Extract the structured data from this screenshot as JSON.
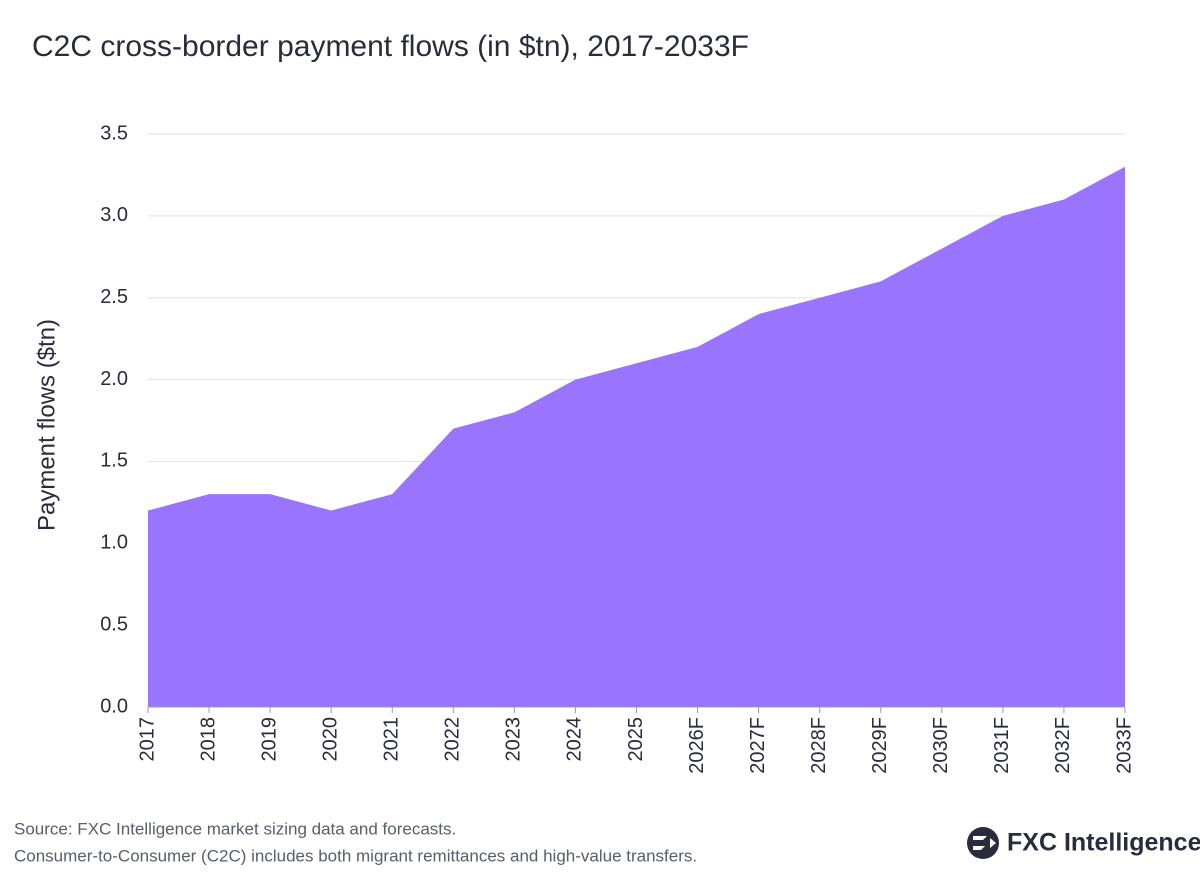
{
  "chart_data": {
    "type": "area",
    "title": "C2C cross-border payment flows (in $tn), 2017-2033F",
    "y_label": "Payment flows ($tn)",
    "categories": [
      "2017",
      "2018",
      "2019",
      "2020",
      "2021",
      "2022",
      "2023",
      "2024",
      "2025",
      "2026F",
      "2027F",
      "2028F",
      "2029F",
      "2030F",
      "2031F",
      "2032F",
      "2033F"
    ],
    "values": [
      1.2,
      1.3,
      1.3,
      1.2,
      1.3,
      1.7,
      1.8,
      2.0,
      2.1,
      2.2,
      2.4,
      2.5,
      2.6,
      2.8,
      3.0,
      3.1,
      3.3
    ],
    "color": "#9874ff",
    "ylim": [
      0,
      3.5
    ],
    "yticks": [
      {
        "value": 0,
        "label": "0.0"
      },
      0.5,
      {
        "value": 1,
        "label": "1.0"
      },
      1.5,
      {
        "value": 2,
        "label": "2.0"
      },
      2.5,
      {
        "value": 3,
        "label": "3.0"
      },
      3.5
    ],
    "grid": true
  },
  "footer": {
    "source": "Source: FXC Intelligence market sizing data and forecasts.",
    "note": "Consumer-to-Consumer (C2C) includes both migrant remittances and high-value transfers.",
    "logo": "FXC Intelligence"
  }
}
